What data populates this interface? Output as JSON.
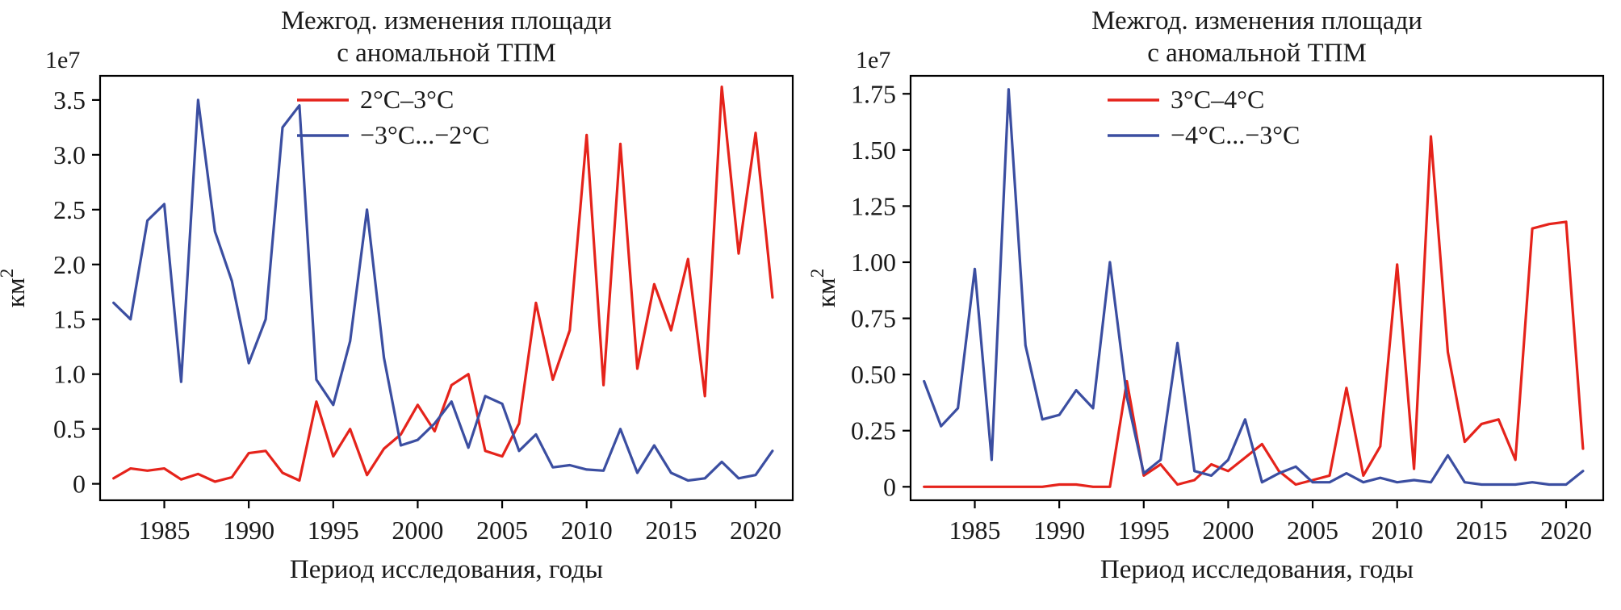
{
  "page": {
    "background": "#ffffff"
  },
  "chart_data": [
    {
      "type": "line",
      "title": "Межгод. изменения площади с аномальной ТПМ",
      "title_lines": [
        "Межгод. изменения площади",
        "с аномальной ТПМ"
      ],
      "offset_text": "1e7",
      "ylabel": "км²",
      "xlabel": "Период исследования, годы",
      "grid": false,
      "legend_position": "upper center",
      "xlim": [
        1981.2,
        2022.2
      ],
      "ylim": [
        -0.15,
        3.72
      ],
      "xticks": {
        "values": [
          1985,
          1990,
          1995,
          2000,
          2005,
          2010,
          2015,
          2020
        ],
        "labels": [
          "1985",
          "1990",
          "1995",
          "2000",
          "2005",
          "2010",
          "2015",
          "2020"
        ]
      },
      "yticks": {
        "values": [
          0,
          0.5,
          1.0,
          1.5,
          2.0,
          2.5,
          3.0,
          3.5
        ],
        "labels": [
          "0",
          "0.5",
          "1.0",
          "1.5",
          "2.0",
          "2.5",
          "3.0",
          "3.5"
        ]
      },
      "x": [
        1982,
        1983,
        1984,
        1985,
        1986,
        1987,
        1988,
        1989,
        1990,
        1991,
        1992,
        1993,
        1994,
        1995,
        1996,
        1997,
        1998,
        1999,
        2000,
        2001,
        2002,
        2003,
        2004,
        2005,
        2006,
        2007,
        2008,
        2009,
        2010,
        2011,
        2012,
        2013,
        2014,
        2015,
        2016,
        2017,
        2018,
        2019,
        2020,
        2021
      ],
      "series": [
        {
          "name": "2°C–3°C",
          "color": "#e5231b",
          "values": [
            0.05,
            0.14,
            0.12,
            0.14,
            0.04,
            0.09,
            0.02,
            0.06,
            0.28,
            0.3,
            0.1,
            0.03,
            0.75,
            0.25,
            0.5,
            0.08,
            0.32,
            0.45,
            0.72,
            0.48,
            0.9,
            1.0,
            0.3,
            0.25,
            0.55,
            1.65,
            0.95,
            1.4,
            3.18,
            0.9,
            3.1,
            1.05,
            1.82,
            1.4,
            2.05,
            0.8,
            3.62,
            2.1,
            3.2,
            1.7
          ]
        },
        {
          "name": "−3°C...−2°C",
          "color": "#3b4ea1",
          "values": [
            1.65,
            1.5,
            2.4,
            2.55,
            0.93,
            3.5,
            2.3,
            1.85,
            1.1,
            1.5,
            3.25,
            3.45,
            0.95,
            0.72,
            1.3,
            2.5,
            1.15,
            0.35,
            0.4,
            0.55,
            0.75,
            0.33,
            0.8,
            0.73,
            0.3,
            0.45,
            0.15,
            0.17,
            0.13,
            0.12,
            0.5,
            0.1,
            0.35,
            0.1,
            0.03,
            0.05,
            0.2,
            0.05,
            0.08,
            0.3
          ]
        }
      ]
    },
    {
      "type": "line",
      "title": "Межгод. изменения площади с аномальной ТПМ",
      "title_lines": [
        "Межгод. изменения площади",
        "с аномальной ТПМ"
      ],
      "offset_text": "1e7",
      "ylabel": "км²",
      "xlabel": "Период исследования, годы",
      "grid": false,
      "legend_position": "upper center",
      "xlim": [
        1981.2,
        2022.2
      ],
      "ylim": [
        -0.06,
        1.83
      ],
      "xticks": {
        "values": [
          1985,
          1990,
          1995,
          2000,
          2005,
          2010,
          2015,
          2020
        ],
        "labels": [
          "1985",
          "1990",
          "1995",
          "2000",
          "2005",
          "2010",
          "2015",
          "2020"
        ]
      },
      "yticks": {
        "values": [
          0,
          0.25,
          0.5,
          0.75,
          1.0,
          1.25,
          1.5,
          1.75
        ],
        "labels": [
          "0",
          "0.25",
          "0.50",
          "0.75",
          "1.00",
          "1.25",
          "1.50",
          "1.75"
        ]
      },
      "x": [
        1982,
        1983,
        1984,
        1985,
        1986,
        1987,
        1988,
        1989,
        1990,
        1991,
        1992,
        1993,
        1994,
        1995,
        1996,
        1997,
        1998,
        1999,
        2000,
        2001,
        2002,
        2003,
        2004,
        2005,
        2006,
        2007,
        2008,
        2009,
        2010,
        2011,
        2012,
        2013,
        2014,
        2015,
        2016,
        2017,
        2018,
        2019,
        2020,
        2021
      ],
      "series": [
        {
          "name": "3°C–4°C",
          "color": "#e5231b",
          "values": [
            0.0,
            0.0,
            0.0,
            0.0,
            0.0,
            0.0,
            0.0,
            0.0,
            0.01,
            0.01,
            0.0,
            0.0,
            0.47,
            0.05,
            0.1,
            0.01,
            0.03,
            0.1,
            0.07,
            0.13,
            0.19,
            0.07,
            0.01,
            0.03,
            0.05,
            0.44,
            0.05,
            0.18,
            0.99,
            0.08,
            1.56,
            0.6,
            0.2,
            0.28,
            0.3,
            0.12,
            1.15,
            1.17,
            1.18,
            0.17
          ]
        },
        {
          "name": "−4°C...−3°C",
          "color": "#3b4ea1",
          "values": [
            0.47,
            0.27,
            0.35,
            0.97,
            0.12,
            1.77,
            0.63,
            0.3,
            0.32,
            0.43,
            0.35,
            1.0,
            0.4,
            0.06,
            0.12,
            0.64,
            0.07,
            0.05,
            0.12,
            0.3,
            0.02,
            0.06,
            0.09,
            0.02,
            0.02,
            0.06,
            0.02,
            0.04,
            0.02,
            0.03,
            0.02,
            0.14,
            0.02,
            0.01,
            0.01,
            0.01,
            0.02,
            0.01,
            0.01,
            0.07
          ]
        }
      ]
    }
  ]
}
